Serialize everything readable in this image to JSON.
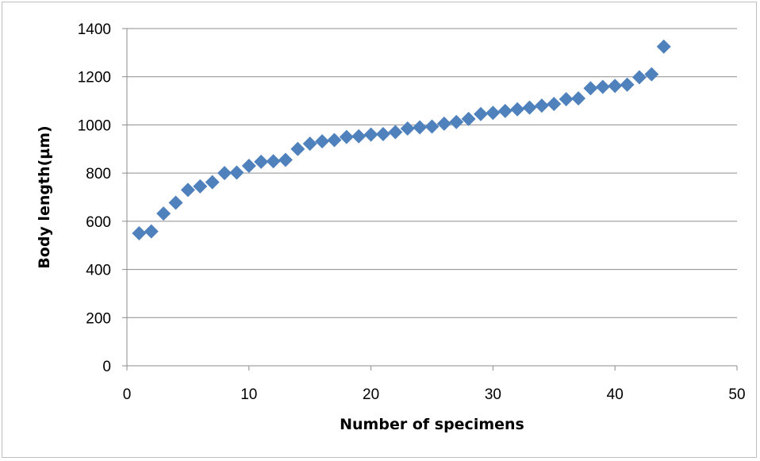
{
  "chart_data": {
    "type": "scatter",
    "title": "",
    "xlabel": "Number of specimens",
    "ylabel": "Body length(µm)",
    "xlim": [
      0,
      50
    ],
    "ylim": [
      0,
      1400
    ],
    "xticks": [
      0,
      10,
      20,
      30,
      40,
      50
    ],
    "yticks": [
      0,
      200,
      400,
      600,
      800,
      1000,
      1200,
      1400
    ],
    "grid": "horizontal",
    "legend": "none",
    "marker": "diamond",
    "color": "#4F81BD",
    "series": [
      {
        "x": [
          1,
          2,
          3,
          4,
          5,
          6,
          7,
          8,
          9,
          10,
          11,
          12,
          13,
          14,
          15,
          16,
          17,
          18,
          19,
          20,
          21,
          22,
          23,
          24,
          25,
          26,
          27,
          28,
          29,
          30,
          31,
          32,
          33,
          34,
          35,
          36,
          37,
          38,
          39,
          40,
          41,
          42,
          43,
          44
        ],
        "y": [
          550,
          558,
          632,
          677,
          730,
          745,
          762,
          800,
          802,
          830,
          847,
          849,
          855,
          900,
          922,
          932,
          937,
          950,
          953,
          960,
          962,
          970,
          985,
          990,
          993,
          1005,
          1012,
          1025,
          1045,
          1050,
          1058,
          1065,
          1072,
          1080,
          1087,
          1107,
          1110,
          1152,
          1158,
          1162,
          1167,
          1198,
          1210,
          1325
        ]
      }
    ]
  }
}
